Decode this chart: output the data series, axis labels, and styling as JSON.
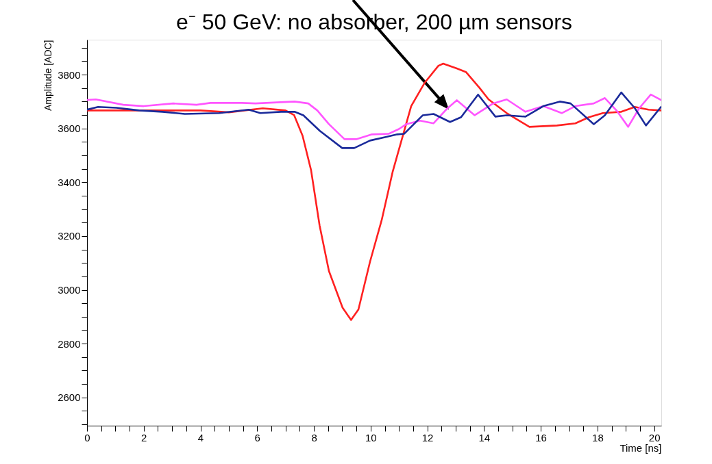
{
  "chart_data": {
    "type": "line",
    "title": "e⁻ 50 GeV: no absorber, 200 µm sensors",
    "xlabel": "Time [ns]",
    "ylabel": "Amplitude [ADC]",
    "xlim": [
      0,
      20.25
    ],
    "ylim": [
      2495,
      3930
    ],
    "xticks": [
      0,
      {
        "value": 0.5,
        "label": null
      },
      {
        "value": 1,
        "label": null
      },
      {
        "value": 1.5,
        "label": null
      },
      2,
      {
        "value": 2.5,
        "label": null
      },
      {
        "value": 3,
        "label": null
      },
      {
        "value": 3.5,
        "label": null
      },
      4,
      {
        "value": 4.5,
        "label": null
      },
      {
        "value": 5,
        "label": null
      },
      {
        "value": 5.5,
        "label": null
      },
      6,
      {
        "value": 6.5,
        "label": null
      },
      {
        "value": 7,
        "label": null
      },
      {
        "value": 7.5,
        "label": null
      },
      8,
      {
        "value": 8.5,
        "label": null
      },
      {
        "value": 9,
        "label": null
      },
      {
        "value": 9.5,
        "label": null
      },
      10,
      {
        "value": 10.5,
        "label": null
      },
      {
        "value": 11,
        "label": null
      },
      {
        "value": 11.5,
        "label": null
      },
      12,
      {
        "value": 12.5,
        "label": null
      },
      {
        "value": 13,
        "label": null
      },
      {
        "value": 13.5,
        "label": null
      },
      14,
      {
        "value": 14.5,
        "label": null
      },
      {
        "value": 15,
        "label": null
      },
      {
        "value": 15.5,
        "label": null
      },
      16,
      {
        "value": 16.5,
        "label": null
      },
      {
        "value": 17,
        "label": null
      },
      {
        "value": 17.5,
        "label": null
      },
      18,
      {
        "value": 18.5,
        "label": null
      },
      {
        "value": 19,
        "label": null
      },
      {
        "value": 19.5,
        "label": null
      },
      20
    ],
    "yticks": [
      {
        "value": 2500,
        "label": null
      },
      {
        "value": 2550,
        "label": null
      },
      2600,
      {
        "value": 2650,
        "label": null
      },
      {
        "value": 2700,
        "label": null
      },
      {
        "value": 2750,
        "label": null
      },
      2800,
      {
        "value": 2850,
        "label": null
      },
      {
        "value": 2900,
        "label": null
      },
      {
        "value": 2950,
        "label": null
      },
      3000,
      {
        "value": 3050,
        "label": null
      },
      {
        "value": 3100,
        "label": null
      },
      {
        "value": 3150,
        "label": null
      },
      3200,
      {
        "value": 3250,
        "label": null
      },
      {
        "value": 3300,
        "label": null
      },
      {
        "value": 3350,
        "label": null
      },
      3400,
      {
        "value": 3450,
        "label": null
      },
      {
        "value": 3500,
        "label": null
      },
      {
        "value": 3550,
        "label": null
      },
      3600,
      {
        "value": 3650,
        "label": null
      },
      {
        "value": 3700,
        "label": null
      },
      {
        "value": 3750,
        "label": null
      },
      3800,
      {
        "value": 3850,
        "label": null
      },
      {
        "value": 3900,
        "label": null
      }
    ],
    "grid": false,
    "legend": false,
    "marker": "none",
    "line_style": "solid",
    "series": [
      {
        "color": "#ff2020",
        "x": [
          0,
          4,
          5,
          6.2,
          7,
          7.3,
          7.6,
          7.9,
          8.2,
          8.53,
          9.01,
          9.31,
          9.57,
          9.98,
          10.39,
          10.78,
          11.43,
          11.9,
          12.39,
          12.56,
          13.04,
          13.36,
          13.84,
          14.16,
          14.8,
          15.6,
          16.57,
          17.22,
          17.7,
          18.19,
          18.84,
          19.32,
          19.8,
          20.24
        ],
        "values": [
          3667,
          3667,
          3660,
          3675,
          3667,
          3650,
          3573,
          3445,
          3240,
          3070,
          2934,
          2888,
          2927,
          3105,
          3259,
          3440,
          3683,
          3769,
          3833,
          3841,
          3823,
          3810,
          3751,
          3708,
          3657,
          3606,
          3611,
          3619,
          3642,
          3657,
          3662,
          3680,
          3670,
          3667
        ]
      },
      {
        "color": "#ff55ff",
        "x": [
          0,
          0.31,
          1.28,
          2.0,
          3.04,
          3.86,
          4.35,
          5.46,
          5.94,
          7.32,
          7.8,
          8.12,
          8.53,
          9.08,
          9.49,
          10.05,
          10.63,
          11.0,
          11.26,
          11.74,
          12.22,
          12.71,
          13.04,
          13.67,
          14.32,
          14.8,
          15.46,
          16.09,
          16.74,
          17.22,
          17.87,
          18.26,
          18.67,
          19.08,
          19.47,
          19.88,
          20.24
        ],
        "values": [
          3706,
          3708,
          3688,
          3683,
          3693,
          3688,
          3695,
          3695,
          3693,
          3700,
          3693,
          3667,
          3616,
          3560,
          3560,
          3578,
          3580,
          3598,
          3616,
          3629,
          3619,
          3675,
          3705,
          3649,
          3693,
          3708,
          3662,
          3683,
          3657,
          3683,
          3693,
          3713,
          3667,
          3606,
          3675,
          3726,
          3706
        ]
      },
      {
        "color": "#1a2a9a",
        "x": [
          0,
          0.39,
          1.04,
          1.84,
          2.66,
          3.45,
          4.66,
          5.7,
          6.11,
          6.84,
          7.32,
          7.63,
          8.21,
          9.0,
          9.42,
          9.98,
          10.53,
          10.94,
          11.18,
          11.84,
          12.22,
          12.8,
          13.19,
          13.79,
          14.4,
          14.8,
          15.46,
          16.09,
          16.67,
          17.05,
          17.87,
          18.26,
          18.84,
          19.32,
          19.71,
          20.24
        ],
        "values": [
          3670,
          3680,
          3677,
          3667,
          3662,
          3654,
          3657,
          3670,
          3657,
          3662,
          3662,
          3649,
          3591,
          3527,
          3527,
          3555,
          3568,
          3578,
          3580,
          3649,
          3654,
          3624,
          3642,
          3726,
          3644,
          3649,
          3644,
          3683,
          3700,
          3693,
          3616,
          3649,
          3734,
          3675,
          3611,
          3680
        ]
      }
    ]
  }
}
